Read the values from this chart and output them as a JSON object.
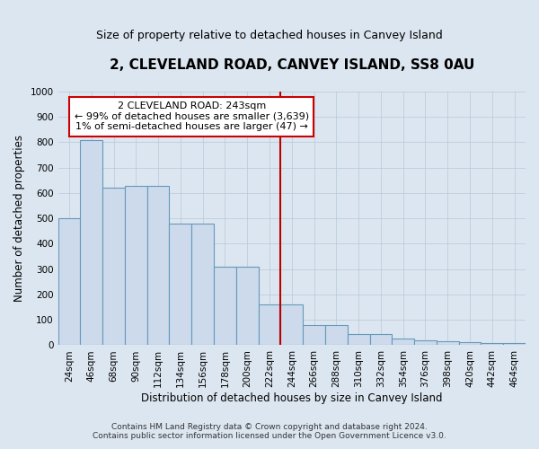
{
  "title": "2, CLEVELAND ROAD, CANVEY ISLAND, SS8 0AU",
  "subtitle": "Size of property relative to detached houses in Canvey Island",
  "xlabel": "Distribution of detached houses by size in Canvey Island",
  "ylabel": "Number of detached properties",
  "footnote": "Contains HM Land Registry data © Crown copyright and database right 2024.\nContains public sector information licensed under the Open Government Licence v3.0.",
  "bar_categories": [
    "24sqm",
    "46sqm",
    "68sqm",
    "90sqm",
    "112sqm",
    "134sqm",
    "156sqm",
    "178sqm",
    "200sqm",
    "222sqm",
    "244sqm",
    "266sqm",
    "288sqm",
    "310sqm",
    "332sqm",
    "354sqm",
    "376sqm",
    "398sqm",
    "420sqm",
    "442sqm",
    "464sqm"
  ],
  "bar_values": [
    500,
    810,
    620,
    630,
    630,
    480,
    480,
    310,
    310,
    160,
    160,
    80,
    80,
    45,
    45,
    25,
    20,
    15,
    12,
    10,
    10
  ],
  "bar_color": "#ccdaeb",
  "bar_edge_color": "#6699bb",
  "vline_x_index": 10,
  "vline_color": "#bb0000",
  "annotation_text": "2 CLEVELAND ROAD: 243sqm\n← 99% of detached houses are smaller (3,639)\n1% of semi-detached houses are larger (47) →",
  "annotation_box_facecolor": "#ffffff",
  "annotation_box_edgecolor": "#cc0000",
  "background_color": "#dce6f0",
  "plot_bg_color": "#dce6f0",
  "ylim": [
    0,
    1000
  ],
  "yticks": [
    0,
    100,
    200,
    300,
    400,
    500,
    600,
    700,
    800,
    900,
    1000
  ],
  "title_fontsize": 11,
  "subtitle_fontsize": 9,
  "xlabel_fontsize": 8.5,
  "ylabel_fontsize": 8.5,
  "tick_fontsize": 7.5,
  "annot_fontsize": 8,
  "footnote_fontsize": 6.5
}
